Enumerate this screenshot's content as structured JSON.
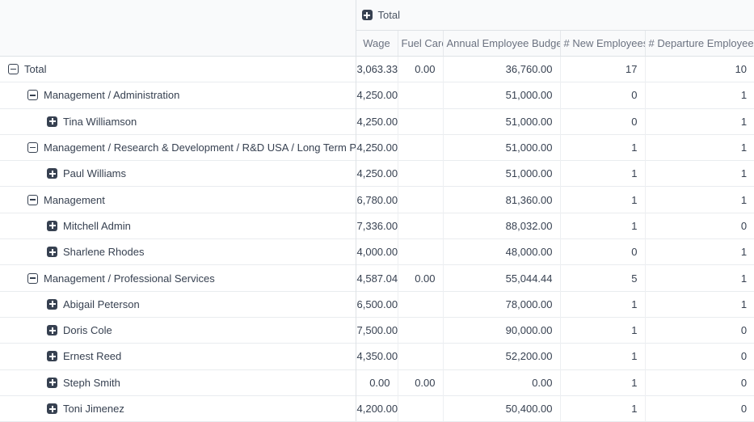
{
  "colors": {
    "header_bg": "#f9fafb",
    "strong_border": "#dee2e6",
    "row_border": "#e9ecef",
    "cell_border": "#edeff2",
    "text": "#374151",
    "measure_text": "#6b7280",
    "icon": "#374151"
  },
  "pivot": {
    "column_group": {
      "label": "Total",
      "state": "collapsed",
      "icon": "plus-square-icon"
    },
    "measures": [
      {
        "label": "Wage"
      },
      {
        "label": "Fuel Card"
      },
      {
        "label": "Annual Employee Budget"
      },
      {
        "label": "# New Employees"
      },
      {
        "label": "# Departure Employee"
      }
    ],
    "rows": [
      {
        "label": "Total",
        "level": 0,
        "expanded": true,
        "values": [
          "3,063.33",
          "0.00",
          "36,760.00",
          "17",
          "10"
        ]
      },
      {
        "label": "Management / Administration",
        "level": 1,
        "expanded": true,
        "values": [
          "4,250.00",
          "",
          "51,000.00",
          "0",
          "1"
        ]
      },
      {
        "label": "Tina Williamson",
        "level": 2,
        "expanded": false,
        "values": [
          "4,250.00",
          "",
          "51,000.00",
          "0",
          "1"
        ]
      },
      {
        "label": "Management / Research & Development / R&D USA / Long Term Projects",
        "level": 1,
        "expanded": true,
        "values": [
          "4,250.00",
          "",
          "51,000.00",
          "1",
          "1"
        ]
      },
      {
        "label": "Paul Williams",
        "level": 2,
        "expanded": false,
        "values": [
          "4,250.00",
          "",
          "51,000.00",
          "1",
          "1"
        ]
      },
      {
        "label": "Management",
        "level": 1,
        "expanded": true,
        "values": [
          "6,780.00",
          "",
          "81,360.00",
          "1",
          "1"
        ]
      },
      {
        "label": "Mitchell Admin",
        "level": 2,
        "expanded": false,
        "values": [
          "7,336.00",
          "",
          "88,032.00",
          "1",
          "0"
        ]
      },
      {
        "label": "Sharlene Rhodes",
        "level": 2,
        "expanded": false,
        "values": [
          "4,000.00",
          "",
          "48,000.00",
          "0",
          "1"
        ]
      },
      {
        "label": "Management / Professional Services",
        "level": 1,
        "expanded": true,
        "values": [
          "4,587.04",
          "0.00",
          "55,044.44",
          "5",
          "1"
        ]
      },
      {
        "label": "Abigail Peterson",
        "level": 2,
        "expanded": false,
        "values": [
          "6,500.00",
          "",
          "78,000.00",
          "1",
          "1"
        ]
      },
      {
        "label": "Doris Cole",
        "level": 2,
        "expanded": false,
        "values": [
          "7,500.00",
          "",
          "90,000.00",
          "1",
          "0"
        ]
      },
      {
        "label": "Ernest Reed",
        "level": 2,
        "expanded": false,
        "values": [
          "4,350.00",
          "",
          "52,200.00",
          "1",
          "0"
        ]
      },
      {
        "label": "Steph Smith",
        "level": 2,
        "expanded": false,
        "values": [
          "0.00",
          "0.00",
          "0.00",
          "1",
          "0"
        ]
      },
      {
        "label": "Toni Jimenez",
        "level": 2,
        "expanded": false,
        "values": [
          "4,200.00",
          "",
          "50,400.00",
          "1",
          "0"
        ]
      }
    ]
  }
}
